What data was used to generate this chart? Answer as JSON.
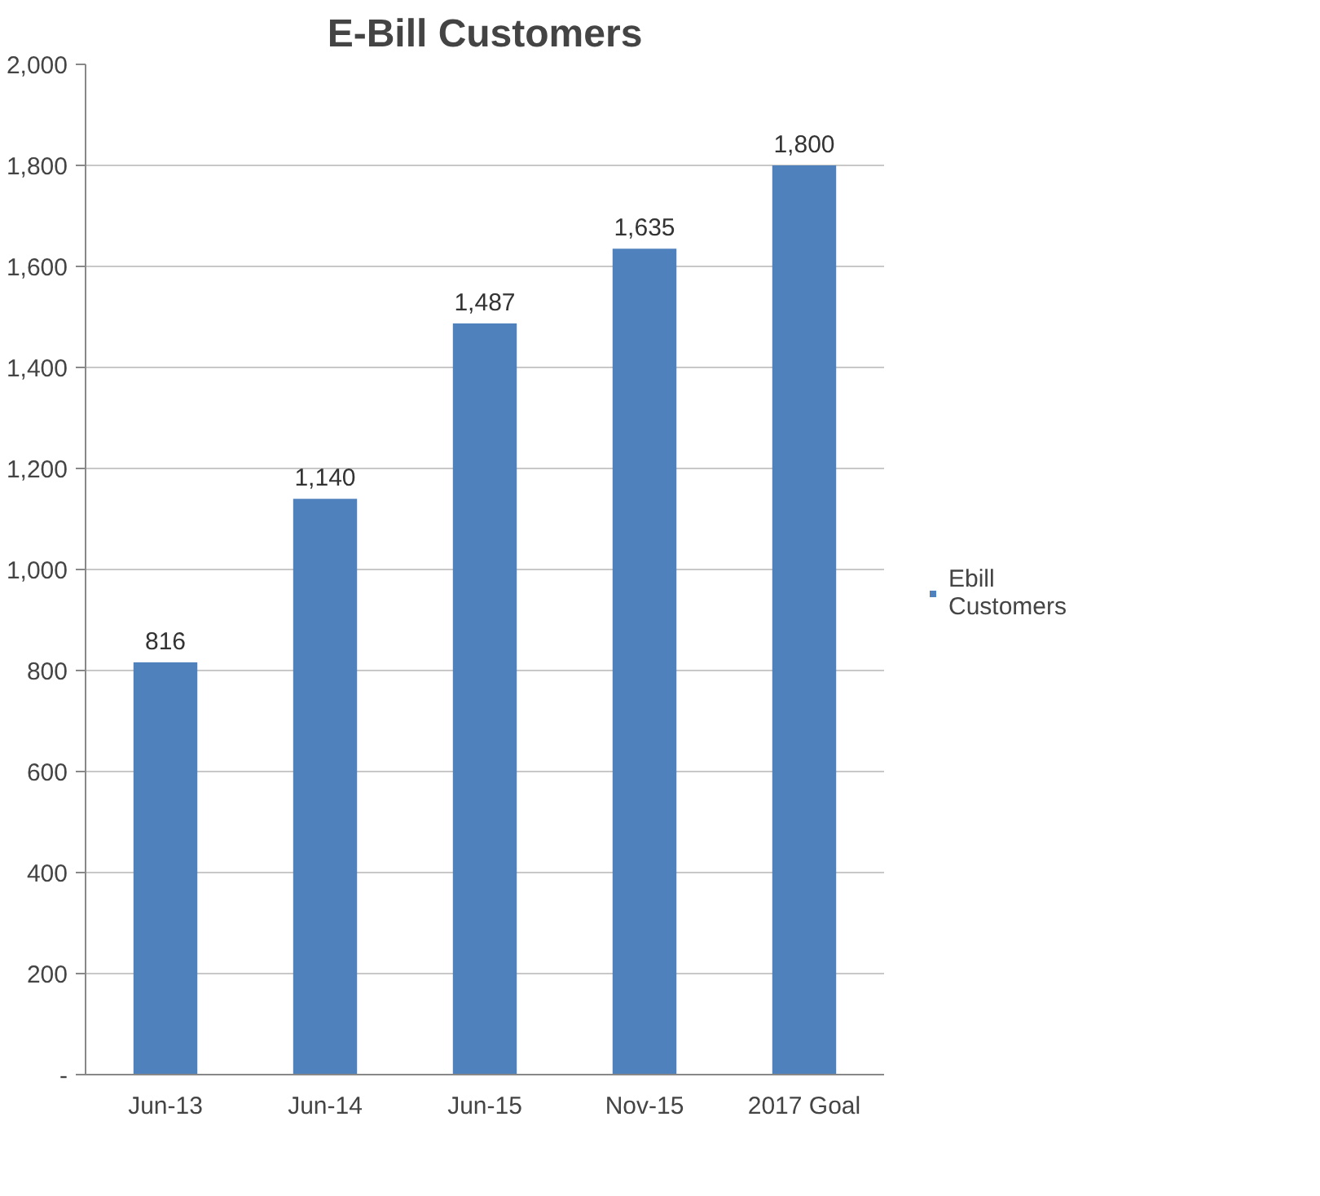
{
  "chart_data": {
    "type": "bar",
    "title": "E-Bill Customers",
    "categories": [
      "Jun-13",
      "Jun-14",
      "Jun-15",
      "Nov-15",
      "2017 Goal"
    ],
    "series": [
      {
        "name": "Ebill Customers",
        "color": "#4f81bd",
        "values": [
          816,
          1140,
          1487,
          1635,
          1800
        ],
        "value_labels": [
          "816",
          "1,140",
          "1,487",
          "1,635",
          "1,800"
        ]
      }
    ],
    "ylim": [
      0,
      2000
    ],
    "yticks": [
      {
        "value": 0,
        "label": "-"
      },
      {
        "value": 200,
        "label": "200"
      },
      {
        "value": 400,
        "label": "400"
      },
      {
        "value": 600,
        "label": "600"
      },
      {
        "value": 800,
        "label": "800"
      },
      {
        "value": 1000,
        "label": "1,000"
      },
      {
        "value": 1200,
        "label": "1,200"
      },
      {
        "value": 1400,
        "label": "1,400"
      },
      {
        "value": 1600,
        "label": "1,600"
      },
      {
        "value": 1800,
        "label": "1,800"
      },
      {
        "value": 2000,
        "label": "2,000"
      }
    ],
    "grid": "y",
    "legend": "right"
  }
}
